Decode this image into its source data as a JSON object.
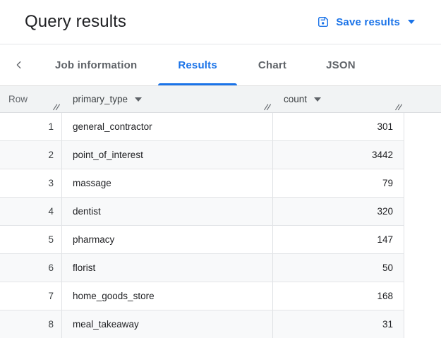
{
  "header": {
    "title": "Query results",
    "save_button": {
      "label": "Save results",
      "icon": "save-icon",
      "caret_icon": "chevron-down-icon"
    }
  },
  "tabs": {
    "back_icon": "chevron-left-icon",
    "items": [
      {
        "label": "Job information",
        "active": false
      },
      {
        "label": "Results",
        "active": true
      },
      {
        "label": "Chart",
        "active": false
      },
      {
        "label": "JSON",
        "active": false
      }
    ]
  },
  "table": {
    "columns": [
      {
        "label": "Row",
        "sortable": false,
        "resize_icon": "column-resize-icon"
      },
      {
        "label": "primary_type",
        "sortable": true,
        "sort_icon": "triangle-down-icon",
        "resize_icon": "column-resize-icon"
      },
      {
        "label": "count",
        "sortable": true,
        "sort_icon": "triangle-down-icon",
        "resize_icon": "column-resize-icon"
      }
    ],
    "rows": [
      {
        "row": "1",
        "primary_type": "general_contractor",
        "count": "301"
      },
      {
        "row": "2",
        "primary_type": "point_of_interest",
        "count": "3442"
      },
      {
        "row": "3",
        "primary_type": "massage",
        "count": "79"
      },
      {
        "row": "4",
        "primary_type": "dentist",
        "count": "320"
      },
      {
        "row": "5",
        "primary_type": "pharmacy",
        "count": "147"
      },
      {
        "row": "6",
        "primary_type": "florist",
        "count": "50"
      },
      {
        "row": "7",
        "primary_type": "home_goods_store",
        "count": "168"
      },
      {
        "row": "8",
        "primary_type": "meal_takeaway",
        "count": "31"
      }
    ]
  },
  "colors": {
    "accent_blue": "#1a73e8",
    "text_primary": "#202124",
    "text_secondary": "#5f6368",
    "table_header_bg": "#f1f3f4",
    "alt_row_bg": "#f8f9fa",
    "border": "#e0e0e0"
  }
}
